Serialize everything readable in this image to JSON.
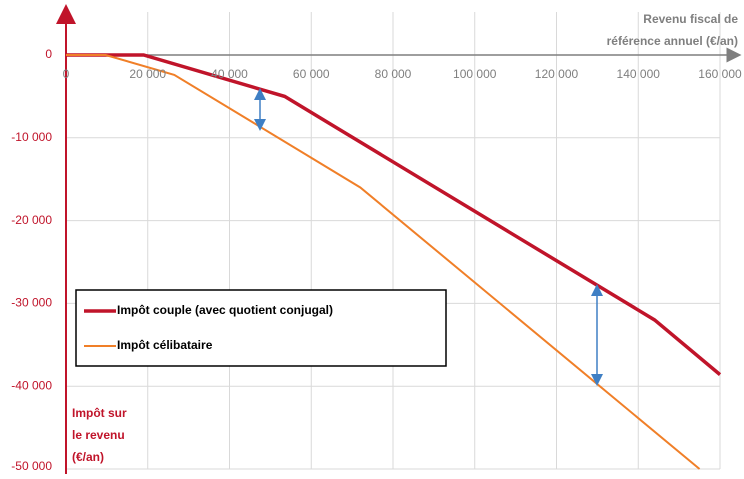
{
  "chart_data": {
    "type": "line",
    "x_label": [
      "Revenu fiscal de",
      "référence annuel (€/an)"
    ],
    "y_label": [
      "Impôt sur",
      "le revenu",
      "(€/an)"
    ],
    "series": [
      {
        "name": "Impôt couple (avec quotient conjugal)",
        "color": "#c0142a",
        "x": [
          0,
          19000,
          53500,
          144000,
          160000
        ],
        "values": [
          0,
          0,
          -5000,
          -32000,
          -38600
        ]
      },
      {
        "name": "Impôt célibataire",
        "color": "#f07f28",
        "x": [
          0,
          9700,
          26500,
          72000,
          155000
        ],
        "values": [
          0,
          0,
          -2400,
          -16000,
          -50000
        ]
      }
    ],
    "xlim": [
      0,
      160000
    ],
    "xticks": [
      0,
      {
        "value": 20000,
        "label": "20 000"
      },
      {
        "value": 40000,
        "label": "40 000"
      },
      {
        "value": 60000,
        "label": "60 000"
      },
      {
        "value": 80000,
        "label": "80 000"
      },
      {
        "value": 100000,
        "label": "100 000"
      },
      {
        "value": 120000,
        "label": "120 000"
      },
      {
        "value": 140000,
        "label": "140 000"
      },
      {
        "value": 160000,
        "label": "160 000"
      }
    ],
    "ylim": [
      -50000,
      0
    ],
    "yticks": [
      0,
      {
        "value": -10000,
        "label": "-10 000"
      },
      {
        "value": -20000,
        "label": "-20 000"
      },
      {
        "value": -30000,
        "label": "-30 000"
      },
      {
        "value": -40000,
        "label": "-40 000"
      },
      {
        "value": -50000,
        "label": "-50 000"
      }
    ],
    "grid": true,
    "legend": "lower left"
  }
}
